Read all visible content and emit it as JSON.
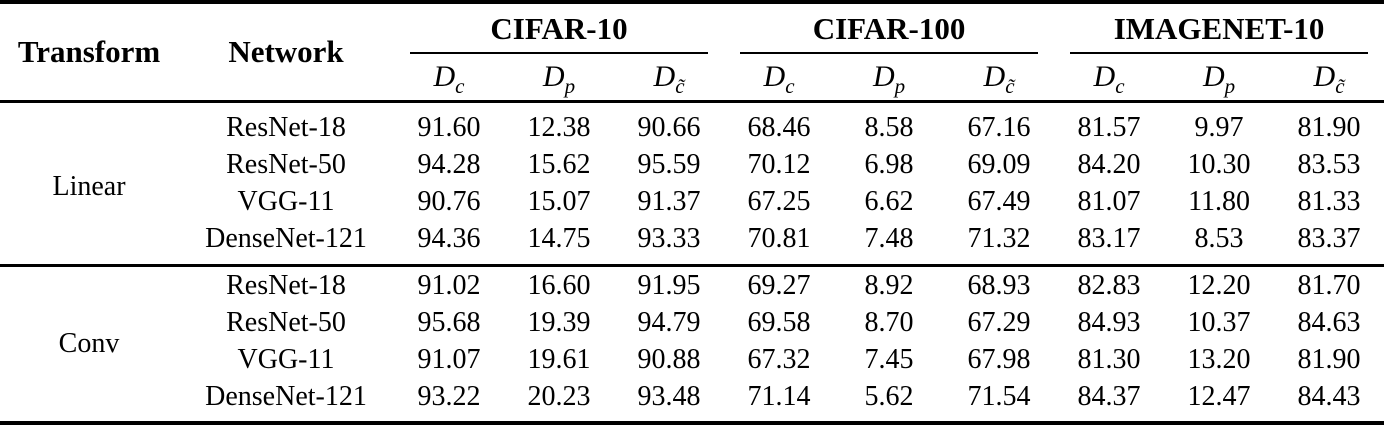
{
  "header": {
    "transform": "Transform",
    "network": "Network",
    "groups": [
      "CIFAR-10",
      "CIFAR-100",
      "IMAGENET-10"
    ],
    "subcols": [
      {
        "base": "D",
        "sub": "c"
      },
      {
        "base": "D",
        "sub": "p"
      },
      {
        "base": "D",
        "sub": "c̃"
      }
    ]
  },
  "blocks": [
    {
      "transform": "Linear",
      "rows": [
        {
          "network": "ResNet-18",
          "values": [
            "91.60",
            "12.38",
            "90.66",
            "68.46",
            "8.58",
            "67.16",
            "81.57",
            "9.97",
            "81.90"
          ]
        },
        {
          "network": "ResNet-50",
          "values": [
            "94.28",
            "15.62",
            "95.59",
            "70.12",
            "6.98",
            "69.09",
            "84.20",
            "10.30",
            "83.53"
          ]
        },
        {
          "network": "VGG-11",
          "values": [
            "90.76",
            "15.07",
            "91.37",
            "67.25",
            "6.62",
            "67.49",
            "81.07",
            "11.80",
            "81.33"
          ]
        },
        {
          "network": "DenseNet-121",
          "values": [
            "94.36",
            "14.75",
            "93.33",
            "70.81",
            "7.48",
            "71.32",
            "83.17",
            "8.53",
            "83.37"
          ]
        }
      ]
    },
    {
      "transform": "Conv",
      "rows": [
        {
          "network": "ResNet-18",
          "values": [
            "91.02",
            "16.60",
            "91.95",
            "69.27",
            "8.92",
            "68.93",
            "82.83",
            "12.20",
            "81.70"
          ]
        },
        {
          "network": "ResNet-50",
          "values": [
            "95.68",
            "19.39",
            "94.79",
            "69.58",
            "8.70",
            "67.29",
            "84.93",
            "10.37",
            "84.63"
          ]
        },
        {
          "network": "VGG-11",
          "values": [
            "91.07",
            "19.61",
            "90.88",
            "67.32",
            "7.45",
            "67.98",
            "81.30",
            "13.20",
            "81.90"
          ]
        },
        {
          "network": "DenseNet-121",
          "values": [
            "93.22",
            "20.23",
            "93.48",
            "71.14",
            "5.62",
            "71.54",
            "84.37",
            "12.47",
            "84.43"
          ]
        }
      ]
    }
  ]
}
